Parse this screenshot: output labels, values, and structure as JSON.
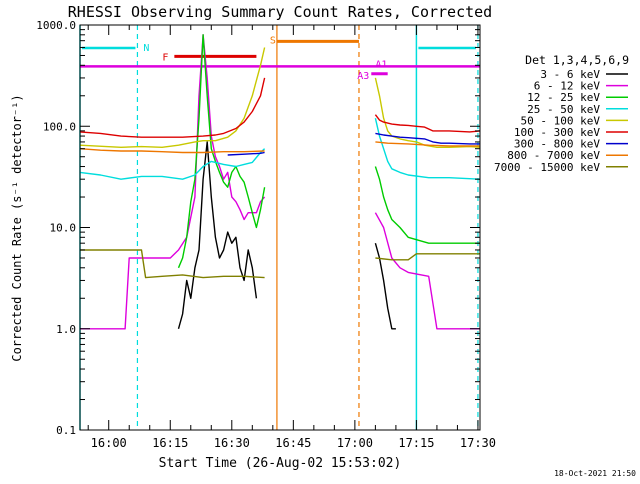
{
  "chart_data": {
    "type": "line",
    "title": "RHESSI Observing Summary Count Rates, Corrected",
    "xlabel": "Start Time (26-Aug-02 15:53:02)",
    "ylabel": "Corrected Count Rate (s⁻¹ detector⁻¹)",
    "x_unit": "minutes since 15:53:02",
    "xlim": [
      0,
      97.5
    ],
    "ylim": [
      0.1,
      1000
    ],
    "yscale": "log",
    "grid": false,
    "legend_position": "right",
    "legend_title": "Det 1,3,4,5,6,9",
    "x_ticks": [
      {
        "x": 7,
        "label": "16:00"
      },
      {
        "x": 22,
        "label": "16:15"
      },
      {
        "x": 37,
        "label": "16:30"
      },
      {
        "x": 52,
        "label": "16:45"
      },
      {
        "x": 67,
        "label": "17:00"
      },
      {
        "x": 82,
        "label": "17:15"
      },
      {
        "x": 97,
        "label": "17:30"
      }
    ],
    "y_ticks": [
      {
        "y": 0.1,
        "label": "0.1"
      },
      {
        "y": 1,
        "label": "1.0"
      },
      {
        "y": 10,
        "label": "10.0"
      },
      {
        "y": 100,
        "label": "100.0"
      },
      {
        "y": 1000,
        "label": "1000.0"
      }
    ],
    "series": [
      {
        "name": "3 - 6 keV",
        "color": "#000000",
        "segments": [
          [
            [
              24,
              1
            ],
            [
              25,
              1.4
            ],
            [
              26,
              3
            ],
            [
              27,
              2
            ],
            [
              28,
              4
            ],
            [
              29,
              6
            ],
            [
              30,
              30
            ],
            [
              31,
              70
            ],
            [
              32,
              20
            ],
            [
              33,
              8
            ],
            [
              34,
              5
            ],
            [
              35,
              6
            ],
            [
              36,
              9
            ],
            [
              37,
              7
            ],
            [
              38,
              8
            ],
            [
              39,
              4
            ],
            [
              40,
              3
            ],
            [
              41,
              6
            ],
            [
              42,
              4
            ],
            [
              43,
              2
            ]
          ],
          [
            [
              72,
              7
            ],
            [
              73,
              5
            ],
            [
              74,
              3
            ],
            [
              75,
              1.6
            ],
            [
              76,
              1
            ],
            [
              77,
              1
            ]
          ]
        ]
      },
      {
        "name": "6 - 12 keV",
        "color": "#dd00dd",
        "segments": [
          [
            [
              0,
              1
            ],
            [
              11,
              1
            ],
            [
              12,
              5
            ],
            [
              13,
              5
            ],
            [
              20,
              5
            ],
            [
              22,
              5
            ],
            [
              24,
              6
            ],
            [
              26,
              8
            ],
            [
              28,
              20
            ],
            [
              29,
              200
            ],
            [
              30,
              800
            ],
            [
              31,
              300
            ],
            [
              32,
              80
            ],
            [
              33,
              50
            ],
            [
              34,
              40
            ],
            [
              35,
              30
            ],
            [
              36,
              35
            ],
            [
              37,
              20
            ],
            [
              38,
              18
            ],
            [
              39,
              15
            ],
            [
              40,
              12
            ],
            [
              41,
              14
            ],
            [
              42,
              14
            ],
            [
              43,
              14
            ],
            [
              44,
              18
            ],
            [
              45,
              20
            ]
          ],
          [
            [
              72,
              14
            ],
            [
              74,
              10
            ],
            [
              76,
              5
            ],
            [
              78,
              4
            ],
            [
              80,
              3.6
            ],
            [
              85,
              3.3
            ],
            [
              87,
              1
            ],
            [
              90,
              1
            ],
            [
              97.5,
              1
            ]
          ]
        ]
      },
      {
        "name": "12 - 25 keV",
        "color": "#00cc00",
        "segments": [
          [
            [
              24,
              4
            ],
            [
              25,
              5
            ],
            [
              26,
              8
            ],
            [
              27,
              18
            ],
            [
              28,
              30
            ],
            [
              29,
              120
            ],
            [
              30,
              800
            ],
            [
              31,
              200
            ],
            [
              32,
              60
            ],
            [
              33,
              45
            ],
            [
              34,
              35
            ],
            [
              35,
              28
            ],
            [
              36,
              25
            ],
            [
              37,
              35
            ],
            [
              38,
              40
            ],
            [
              39,
              32
            ],
            [
              40,
              28
            ],
            [
              41,
              20
            ],
            [
              42,
              14
            ],
            [
              43,
              10
            ],
            [
              44,
              15
            ],
            [
              45,
              25
            ]
          ],
          [
            [
              72,
              40
            ],
            [
              73,
              30
            ],
            [
              74,
              20
            ],
            [
              75,
              15
            ],
            [
              76,
              12
            ],
            [
              78,
              10
            ],
            [
              80,
              8
            ],
            [
              85,
              7
            ],
            [
              90,
              7
            ],
            [
              97.5,
              7
            ]
          ]
        ]
      },
      {
        "name": "25 - 50 keV",
        "color": "#00dddd",
        "segments": [
          [
            [
              0,
              35
            ],
            [
              5,
              33
            ],
            [
              10,
              30
            ],
            [
              15,
              32
            ],
            [
              20,
              32
            ],
            [
              25,
              30
            ],
            [
              28,
              33
            ],
            [
              30,
              40
            ],
            [
              32,
              45
            ],
            [
              35,
              42
            ],
            [
              38,
              40
            ],
            [
              40,
              42
            ],
            [
              42,
              44
            ],
            [
              44,
              55
            ],
            [
              45,
              60
            ]
          ],
          [
            [
              72,
              120
            ],
            [
              73,
              80
            ],
            [
              74,
              60
            ],
            [
              75,
              45
            ],
            [
              76,
              38
            ],
            [
              78,
              35
            ],
            [
              80,
              33
            ],
            [
              85,
              31
            ],
            [
              90,
              31
            ],
            [
              97.5,
              30
            ]
          ]
        ]
      },
      {
        "name": "50 - 100 keV",
        "color": "#c8c800",
        "segments": [
          [
            [
              0,
              65
            ],
            [
              10,
              62
            ],
            [
              15,
              63
            ],
            [
              20,
              62
            ],
            [
              24,
              65
            ],
            [
              28,
              70
            ],
            [
              30,
              72
            ],
            [
              33,
              72
            ],
            [
              36,
              78
            ],
            [
              38,
              90
            ],
            [
              40,
              120
            ],
            [
              42,
              200
            ],
            [
              44,
              400
            ],
            [
              45,
              600
            ]
          ],
          [
            [
              72,
              300
            ],
            [
              73,
              200
            ],
            [
              74,
              120
            ],
            [
              75,
              90
            ],
            [
              76,
              80
            ],
            [
              78,
              75
            ],
            [
              80,
              72
            ],
            [
              82,
              70
            ],
            [
              84,
              65
            ],
            [
              87,
              62
            ],
            [
              90,
              62
            ],
            [
              95,
              63
            ],
            [
              97.5,
              62
            ]
          ]
        ]
      },
      {
        "name": "100 - 300 keV",
        "color": "#dd0000",
        "segments": [
          [
            [
              0,
              88
            ],
            [
              5,
              85
            ],
            [
              10,
              80
            ],
            [
              15,
              78
            ],
            [
              20,
              78
            ],
            [
              25,
              78
            ],
            [
              30,
              80
            ],
            [
              33,
              82
            ],
            [
              35,
              85
            ],
            [
              38,
              95
            ],
            [
              40,
              110
            ],
            [
              42,
              140
            ],
            [
              44,
              200
            ],
            [
              45,
              300
            ]
          ],
          [
            [
              72,
              130
            ],
            [
              73,
              115
            ],
            [
              74,
              110
            ],
            [
              76,
              105
            ],
            [
              78,
              103
            ],
            [
              80,
              102
            ],
            [
              82,
              100
            ],
            [
              84,
              98
            ],
            [
              86,
              90
            ],
            [
              90,
              90
            ],
            [
              95,
              88
            ],
            [
              97.5,
              90
            ]
          ]
        ]
      },
      {
        "name": "300 - 800 keV",
        "color": "#0000cc",
        "segments": [
          [
            [
              36,
              52
            ],
            [
              40,
              53
            ],
            [
              44,
              54
            ],
            [
              45,
              55
            ]
          ],
          [
            [
              72,
              85
            ],
            [
              74,
              82
            ],
            [
              76,
              80
            ],
            [
              78,
              78
            ],
            [
              80,
              77
            ],
            [
              82,
              76
            ],
            [
              84,
              75
            ],
            [
              86,
              70
            ],
            [
              88,
              68
            ],
            [
              90,
              68
            ],
            [
              95,
              67
            ],
            [
              97.5,
              67
            ]
          ]
        ]
      },
      {
        "name": "800 - 7000 keV",
        "color": "#ee7700",
        "segments": [
          [
            [
              0,
              60
            ],
            [
              5,
              58
            ],
            [
              10,
              57
            ],
            [
              15,
              57
            ],
            [
              20,
              56
            ],
            [
              25,
              55
            ],
            [
              30,
              55
            ],
            [
              35,
              56
            ],
            [
              40,
              56
            ],
            [
              45,
              57
            ]
          ],
          [
            [
              72,
              70
            ],
            [
              75,
              68
            ],
            [
              80,
              67
            ],
            [
              85,
              65
            ],
            [
              90,
              64
            ],
            [
              95,
              64
            ],
            [
              97.5,
              64
            ]
          ]
        ]
      },
      {
        "name": "7000 - 15000 keV",
        "color": "#808000",
        "segments": [
          [
            [
              0,
              6
            ],
            [
              5,
              6
            ],
            [
              10,
              6
            ],
            [
              15,
              6
            ],
            [
              16,
              3.2
            ],
            [
              20,
              3.3
            ],
            [
              25,
              3.4
            ],
            [
              30,
              3.2
            ],
            [
              35,
              3.3
            ],
            [
              40,
              3.3
            ],
            [
              45,
              3.2
            ]
          ],
          [
            [
              72,
              5
            ],
            [
              76,
              4.8
            ],
            [
              80,
              4.8
            ],
            [
              82,
              5.5
            ],
            [
              85,
              5.5
            ],
            [
              90,
              5.5
            ],
            [
              95,
              5.5
            ],
            [
              97.5,
              5.5
            ]
          ]
        ]
      }
    ],
    "shading_intervals": [
      {
        "label": "N",
        "color": "#00dddd",
        "start": 0,
        "end": 14
      },
      {
        "label": "N",
        "color": "#00dddd",
        "start": 82,
        "end": 97
      }
    ],
    "flag_bars": [
      {
        "label": "F",
        "color": "#dd0000",
        "start": 23,
        "end": 43,
        "y": 490
      },
      {
        "label": "S",
        "color": "#ee7700",
        "start": 48,
        "end": 68,
        "y": 690
      },
      {
        "label": "A1",
        "color": "#dd00dd",
        "start": 0,
        "end": 97.5,
        "y": 390
      },
      {
        "label": "A3",
        "color": "#dd00dd",
        "start": 71,
        "end": 75,
        "y": 330
      }
    ],
    "timestamp": "18-Oct-2021 21:50"
  }
}
